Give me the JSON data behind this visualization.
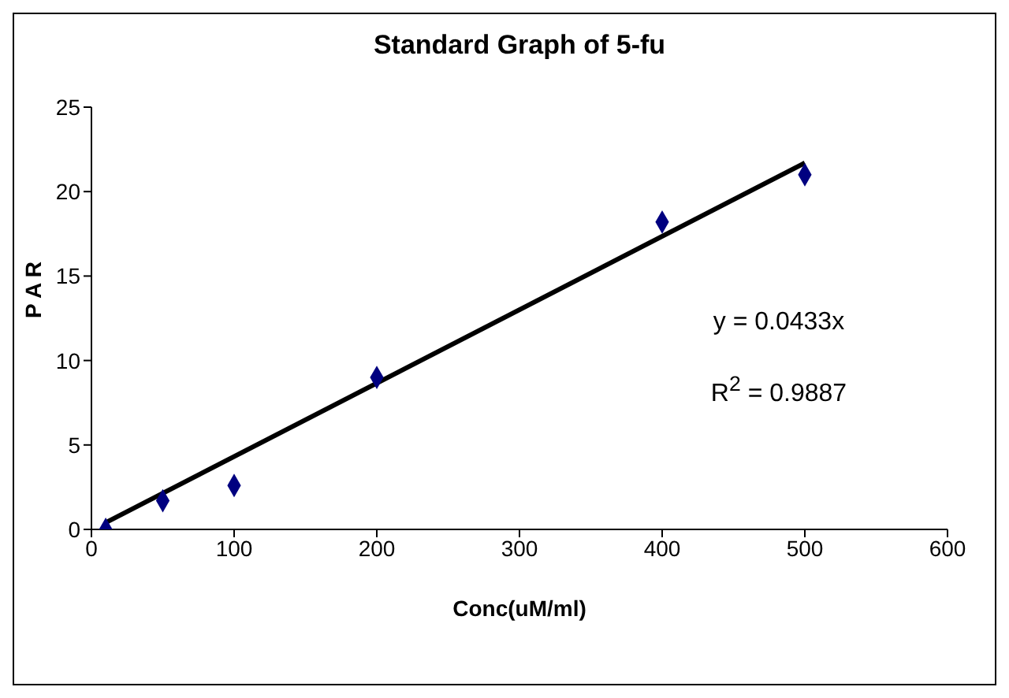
{
  "chart_data": {
    "type": "scatter",
    "title": "Standard Graph of 5-fu",
    "xlabel": "Conc(uM/ml)",
    "ylabel": "P A R",
    "xlim": [
      0,
      600
    ],
    "xticks": [
      0,
      100,
      200,
      300,
      400,
      500,
      600
    ],
    "ylim": [
      0,
      25
    ],
    "yticks": [
      0,
      5,
      10,
      15,
      20,
      25
    ],
    "grid": false,
    "series": [
      {
        "marker": "diamond",
        "color": "#000080",
        "x": [
          10,
          50,
          100,
          200,
          400,
          500
        ],
        "values": [
          0,
          1.7,
          2.6,
          9,
          18.2,
          21
        ]
      },
      {
        "type": "line",
        "marker": "none",
        "color": "#000000",
        "x": [
          10,
          500
        ],
        "values": [
          0.4,
          21.7
        ]
      }
    ],
    "annotations": [
      "y = 0.0433x",
      "R$^{2}$ = 0.9887"
    ]
  }
}
